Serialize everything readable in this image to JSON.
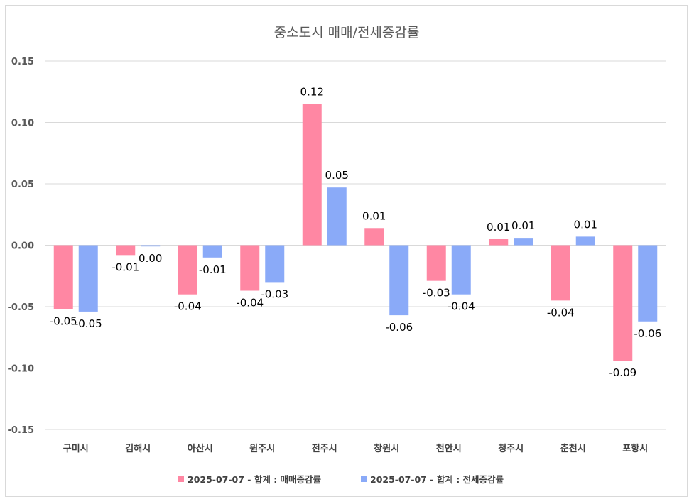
{
  "chart_data": {
    "type": "bar",
    "title": "중소도시 매매/전세증감률",
    "categories": [
      "구미시",
      "김해시",
      "아산시",
      "원주시",
      "전주시",
      "창원시",
      "천안시",
      "청주시",
      "춘천시",
      "포항시"
    ],
    "series": [
      {
        "name": "2025-07-07 - 합계 : 매매증감률",
        "color": "#ff87a3",
        "values": [
          -0.052,
          -0.008,
          -0.04,
          -0.037,
          0.115,
          0.014,
          -0.029,
          0.005,
          -0.045,
          -0.094
        ],
        "labels": [
          "-0.05",
          "-0.01",
          "-0.04",
          "-0.04",
          "0.12",
          "0.01",
          "-0.03",
          "0.01",
          "-0.04",
          "-0.09"
        ]
      },
      {
        "name": "2025-07-07 - 합계 : 전세증감률",
        "color": "#8aaaf8",
        "values": [
          -0.054,
          -0.001,
          -0.01,
          -0.03,
          0.047,
          -0.057,
          -0.04,
          0.006,
          0.007,
          -0.062
        ],
        "labels": [
          "-0.05",
          "0.00",
          "-0.01",
          "-0.03",
          "0.05",
          "-0.06",
          "-0.04",
          "0.01",
          "0.01",
          "-0.06"
        ]
      }
    ],
    "yticks": [
      "0.15",
      "0.10",
      "0.05",
      "0.00",
      "-0.05",
      "-0.10",
      "-0.15"
    ],
    "ylim": [
      -0.15,
      0.15
    ],
    "grid": true,
    "legend": "bottom"
  }
}
